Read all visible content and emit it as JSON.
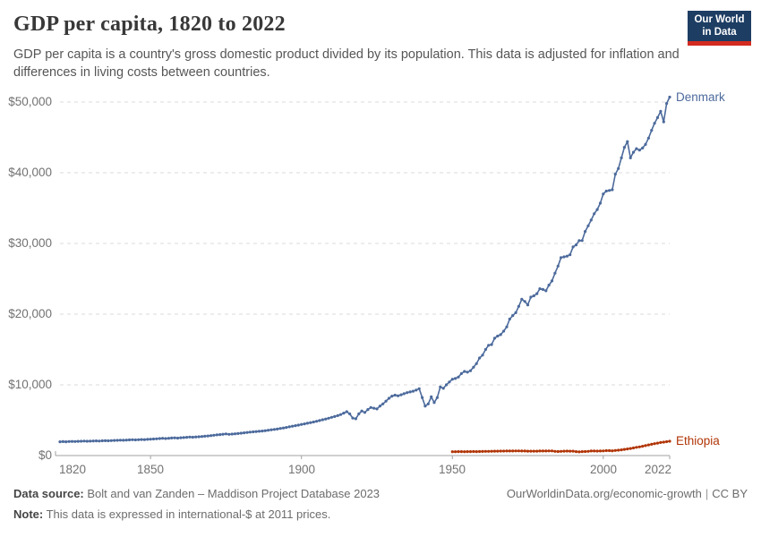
{
  "header": {
    "title": "GDP per capita, 1820 to 2022",
    "subtitle": "GDP per capita is a country's gross domestic product divided by its population. This data is adjusted for inflation and differences in living costs between countries.",
    "logo": {
      "line1": "Our World",
      "line2": "in Data",
      "bg_color": "#1D3D63",
      "stripe_color": "#D42B21"
    }
  },
  "footer": {
    "datasource_label": "Data source:",
    "datasource_text": "Bolt and van Zanden – Maddison Project Database 2023",
    "note_label": "Note:",
    "note_text": "This data is expressed in international-$ at 2011 prices.",
    "url_text": "OurWorldinData.org/economic-growth",
    "separator": "|",
    "license_text": "CC BY"
  },
  "chart_data": {
    "type": "line",
    "title": "GDP per capita, 1820 to 2022",
    "xlabel": "",
    "ylabel": "",
    "x_range": [
      1820,
      2022
    ],
    "y_range": [
      0,
      50000
    ],
    "x_ticks": [
      1820,
      1850,
      1900,
      1950,
      2000,
      2022
    ],
    "x_tick_labels": [
      "1820",
      "1850",
      "1900",
      "1950",
      "2000",
      "2022"
    ],
    "y_ticks": [
      0,
      10000,
      20000,
      30000,
      40000,
      50000
    ],
    "y_tick_labels": [
      "$0",
      "$10,000",
      "$20,000",
      "$30,000",
      "$40,000",
      "$50,000"
    ],
    "grid": "horizontal-dashed",
    "legend_position": "end-of-line-labels",
    "marker": "dot-per-year",
    "axis_color": "#A1A1A1",
    "grid_color": "#DBDBDB",
    "series": [
      {
        "name": "Denmark",
        "color": "#4C6A9C",
        "start_year": 1820,
        "values": [
          1950,
          1970,
          1945,
          1985,
          2005,
          1990,
          2010,
          2030,
          2050,
          2020,
          2040,
          2060,
          2080,
          2055,
          2085,
          2105,
          2090,
          2110,
          2135,
          2155,
          2180,
          2160,
          2185,
          2210,
          2240,
          2215,
          2245,
          2270,
          2255,
          2290,
          2320,
          2345,
          2370,
          2400,
          2440,
          2405,
          2445,
          2480,
          2505,
          2470,
          2520,
          2545,
          2580,
          2615,
          2590,
          2635,
          2660,
          2695,
          2730,
          2775,
          2820,
          2870,
          2920,
          2960,
          3010,
          3060,
          3000,
          3040,
          3070,
          3110,
          3160,
          3210,
          3270,
          3320,
          3360,
          3390,
          3430,
          3470,
          3520,
          3580,
          3640,
          3700,
          3750,
          3830,
          3900,
          3980,
          4060,
          4150,
          4230,
          4310,
          4400,
          4480,
          4570,
          4660,
          4750,
          4850,
          4950,
          5060,
          5170,
          5280,
          5400,
          5520,
          5650,
          5800,
          6000,
          6200,
          5900,
          5300,
          5200,
          5900,
          6300,
          6100,
          6500,
          6800,
          6700,
          6600,
          7000,
          7300,
          7700,
          8100,
          8400,
          8550,
          8450,
          8600,
          8750,
          8900,
          9000,
          9100,
          9250,
          9450,
          8200,
          7000,
          7300,
          8300,
          7500,
          8200,
          9700,
          9500,
          10000,
          10400,
          10800,
          10900,
          11100,
          11600,
          11900,
          11800,
          12000,
          12500,
          13000,
          13800,
          14200,
          15000,
          15600,
          15700,
          16600,
          16900,
          17100,
          17600,
          18200,
          19300,
          19800,
          20200,
          21100,
          22100,
          21800,
          21300,
          22400,
          22600,
          22900,
          23600,
          23500,
          23300,
          24100,
          24700,
          25800,
          26800,
          28000,
          28100,
          28200,
          28400,
          29500,
          29800,
          30400,
          30400,
          31700,
          32500,
          33300,
          34200,
          34800,
          35700,
          37000,
          37400,
          37500,
          37600,
          39800,
          40600,
          42100,
          43600,
          44400,
          42100,
          42900,
          43400,
          43200,
          43500,
          44000,
          44900,
          46000,
          47000,
          47800,
          48700,
          47200,
          49800,
          50700
        ]
      },
      {
        "name": "Ethiopia",
        "color": "#B13507",
        "start_year": 1950,
        "values": [
          540,
          550,
          555,
          560,
          545,
          555,
          560,
          570,
          560,
          570,
          580,
          590,
          600,
          610,
          615,
          625,
          630,
          635,
          640,
          645,
          650,
          655,
          660,
          650,
          640,
          620,
          615,
          625,
          620,
          640,
          650,
          645,
          655,
          660,
          600,
          570,
          600,
          625,
          630,
          625,
          615,
          560,
          520,
          560,
          565,
          590,
          640,
          650,
          630,
          650,
          660,
          700,
          690,
          670,
          720,
          760,
          810,
          870,
          940,
          1000,
          1070,
          1160,
          1230,
          1320,
          1410,
          1500,
          1590,
          1680,
          1760,
          1850,
          1900,
          1960,
          2030
        ]
      }
    ]
  }
}
